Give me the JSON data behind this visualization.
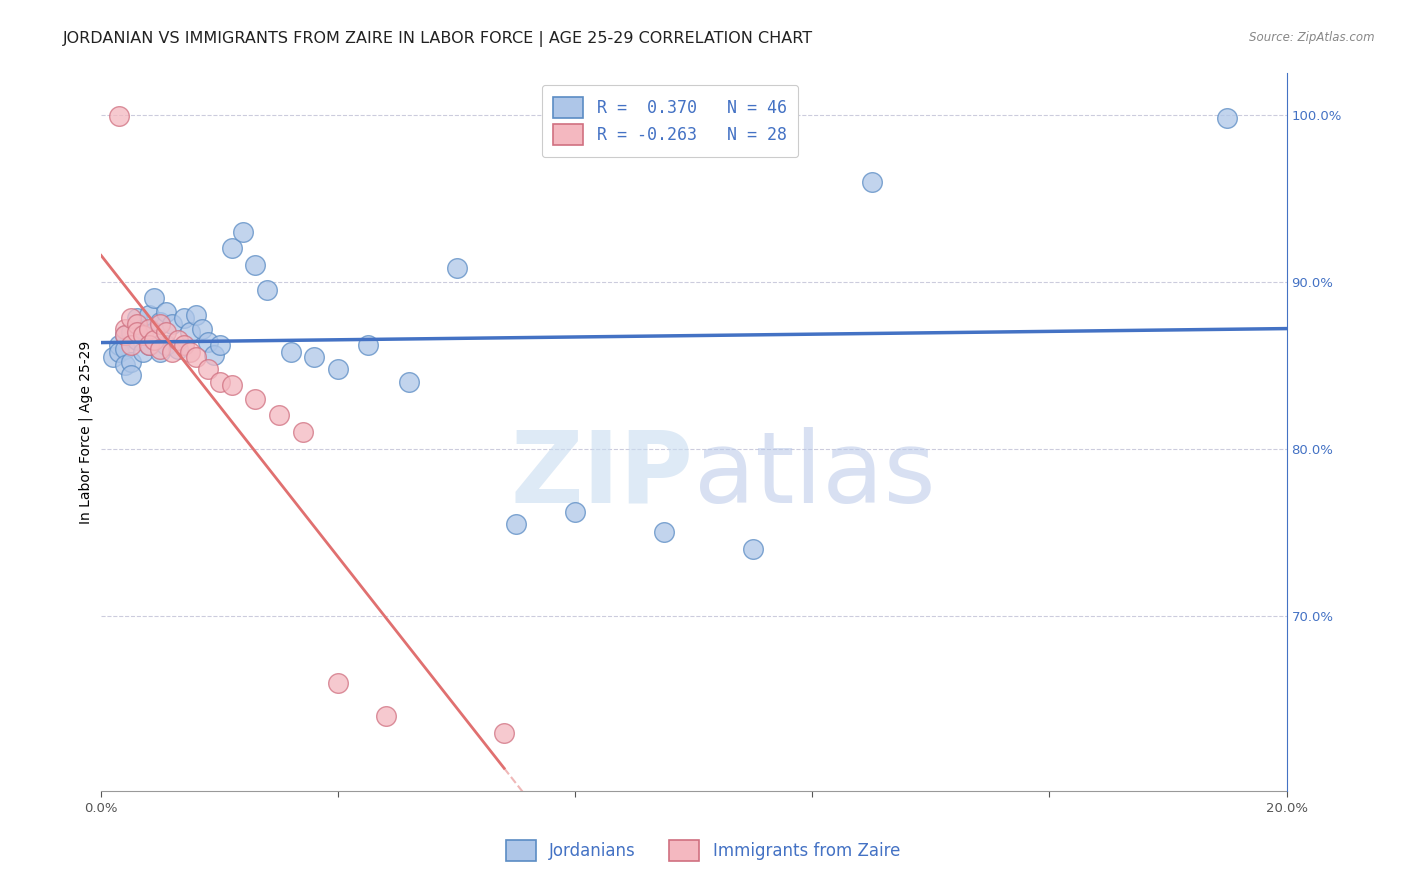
{
  "title": "JORDANIAN VS IMMIGRANTS FROM ZAIRE IN LABOR FORCE | AGE 25-29 CORRELATION CHART",
  "source": "Source: ZipAtlas.com",
  "ylabel": "In Labor Force | Age 25-29",
  "xlim": [
    0.0,
    0.2
  ],
  "ylim": [
    0.595,
    1.025
  ],
  "xticks": [
    0.0,
    0.04,
    0.08,
    0.12,
    0.16,
    0.2
  ],
  "xtick_labels": [
    "0.0%",
    "",
    "",
    "",
    "",
    "20.0%"
  ],
  "ytick_positions": [
    1.0,
    0.9,
    0.8,
    0.7
  ],
  "ytick_labels": [
    "100.0%",
    "90.0%",
    "80.0%",
    "70.0%"
  ],
  "blue_R": 0.37,
  "blue_N": 46,
  "pink_R": -0.263,
  "pink_N": 28,
  "blue_scatter_x": [
    0.002,
    0.003,
    0.003,
    0.004,
    0.004,
    0.004,
    0.005,
    0.005,
    0.005,
    0.006,
    0.006,
    0.007,
    0.007,
    0.008,
    0.008,
    0.009,
    0.009,
    0.01,
    0.01,
    0.011,
    0.011,
    0.012,
    0.013,
    0.014,
    0.015,
    0.016,
    0.017,
    0.018,
    0.019,
    0.02,
    0.022,
    0.024,
    0.026,
    0.028,
    0.032,
    0.036,
    0.04,
    0.045,
    0.052,
    0.06,
    0.07,
    0.08,
    0.095,
    0.11,
    0.13,
    0.19
  ],
  "blue_scatter_y": [
    0.855,
    0.862,
    0.858,
    0.86,
    0.85,
    0.868,
    0.87,
    0.852,
    0.844,
    0.878,
    0.865,
    0.872,
    0.858,
    0.88,
    0.862,
    0.89,
    0.87,
    0.876,
    0.858,
    0.882,
    0.862,
    0.875,
    0.86,
    0.878,
    0.87,
    0.88,
    0.872,
    0.864,
    0.856,
    0.862,
    0.92,
    0.93,
    0.91,
    0.895,
    0.858,
    0.855,
    0.848,
    0.862,
    0.84,
    0.908,
    0.755,
    0.762,
    0.75,
    0.74,
    0.96,
    0.998
  ],
  "pink_scatter_x": [
    0.003,
    0.004,
    0.004,
    0.005,
    0.005,
    0.006,
    0.006,
    0.007,
    0.008,
    0.008,
    0.009,
    0.01,
    0.01,
    0.011,
    0.012,
    0.013,
    0.014,
    0.015,
    0.016,
    0.018,
    0.02,
    0.022,
    0.026,
    0.03,
    0.034,
    0.04,
    0.048,
    0.068
  ],
  "pink_scatter_y": [
    0.999,
    0.872,
    0.868,
    0.878,
    0.862,
    0.875,
    0.87,
    0.868,
    0.872,
    0.862,
    0.865,
    0.875,
    0.86,
    0.87,
    0.858,
    0.865,
    0.862,
    0.858,
    0.855,
    0.848,
    0.84,
    0.838,
    0.83,
    0.82,
    0.81,
    0.66,
    0.64,
    0.63
  ],
  "blue_line_color": "#4472C4",
  "pink_line_color": "#E07070",
  "blue_dot_facecolor": "#AEC6E8",
  "pink_dot_facecolor": "#F4B8C0",
  "blue_dot_edge": "#5B8CC4",
  "pink_dot_edge": "#D07080",
  "watermark_zip": "ZIP",
  "watermark_atlas": "atlas",
  "grid_color": "#CCCCDD",
  "right_axis_color": "#4472C4",
  "title_fontsize": 11.5,
  "ylabel_fontsize": 10,
  "tick_fontsize": 9.5,
  "legend_fontsize": 12
}
